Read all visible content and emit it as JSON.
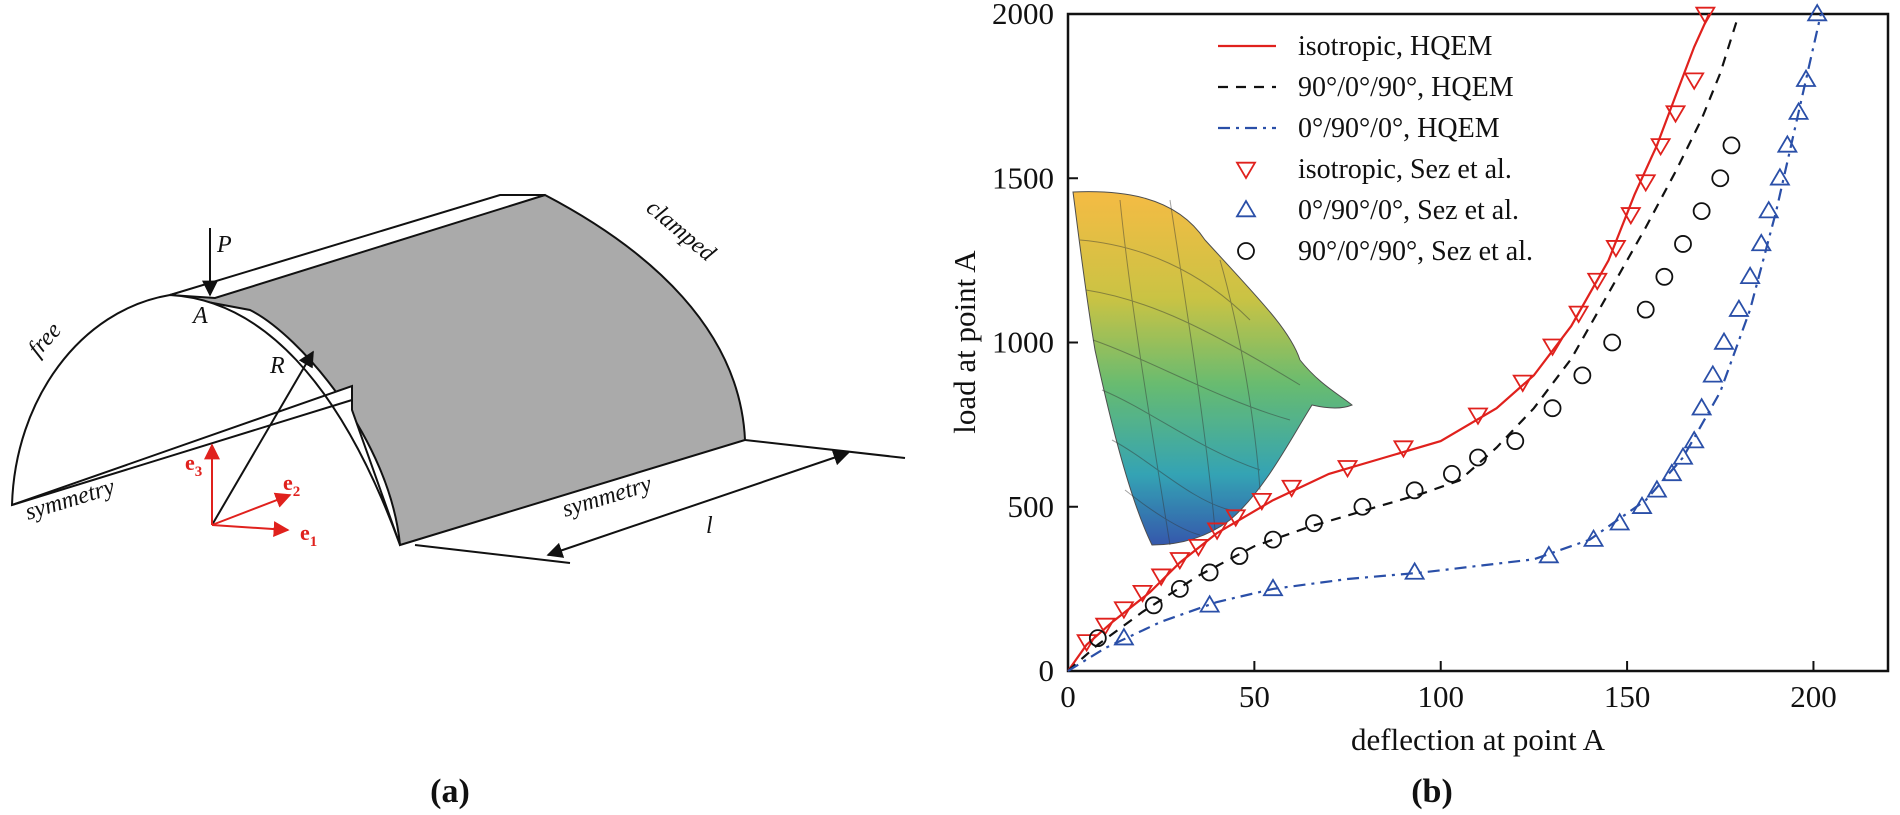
{
  "panel_a": {
    "caption": "(a)",
    "labels": {
      "free": "free",
      "clamped": "clamped",
      "symmetry_left": "symmetry",
      "symmetry_right": "symmetry",
      "load": "P",
      "point": "A",
      "radius": "R",
      "length": "l",
      "e1": "e",
      "e1_sub": "1",
      "e2": "e",
      "e2_sub": "2",
      "e3": "e",
      "e3_sub": "3"
    }
  },
  "panel_b": {
    "caption": "(b)"
  },
  "colors": {
    "isotropic": "#e0211d",
    "cross_90_0_90": "#111111",
    "cross_0_90_0": "#2a4fa8",
    "axes": "#111111",
    "shell_fill": "#aaaaaa",
    "basis": "#e0211d"
  },
  "chart_data": {
    "type": "line",
    "title": "",
    "xlabel": "deflection at point A",
    "ylabel": "load at point A",
    "xlim": [
      0,
      220
    ],
    "ylim": [
      0,
      2000
    ],
    "xticks": [
      0,
      50,
      100,
      150,
      200
    ],
    "yticks": [
      0,
      500,
      1000,
      1500,
      2000
    ],
    "legend_position": "top-center",
    "series": [
      {
        "name": "isotropic, HQEM",
        "style": "solid",
        "color_key": "isotropic",
        "x": [
          0,
          5,
          12,
          22,
          30,
          40,
          55,
          70,
          85,
          100,
          115,
          125,
          135,
          145,
          152,
          158,
          163,
          168,
          172
        ],
        "y": [
          0,
          80,
          150,
          240,
          330,
          420,
          520,
          600,
          650,
          700,
          800,
          900,
          1050,
          1250,
          1450,
          1600,
          1750,
          1900,
          2000
        ]
      },
      {
        "name": "90°/0°/90°, HQEM",
        "style": "dashed",
        "color_key": "cross_90_0_90",
        "x": [
          0,
          8,
          20,
          35,
          50,
          65,
          80,
          95,
          105,
          115,
          125,
          135,
          145,
          155,
          163,
          170,
          175,
          180
        ],
        "y": [
          0,
          80,
          180,
          290,
          380,
          440,
          490,
          540,
          580,
          680,
          800,
          950,
          1150,
          1350,
          1520,
          1680,
          1820,
          2000
        ]
      },
      {
        "name": "0°/90°/0°, HQEM",
        "style": "dashdot",
        "color_key": "cross_0_90_0",
        "x": [
          0,
          10,
          25,
          40,
          55,
          75,
          95,
          110,
          125,
          140,
          155,
          165,
          175,
          183,
          190,
          195,
          199,
          202
        ],
        "y": [
          0,
          70,
          150,
          210,
          250,
          280,
          300,
          320,
          340,
          400,
          520,
          650,
          850,
          1100,
          1400,
          1650,
          1850,
          2000
        ]
      },
      {
        "name": "isotropic, Sez et al.",
        "style": "marker",
        "marker": "triangle-down",
        "color_key": "isotropic",
        "x": [
          5,
          10,
          15,
          20,
          25,
          30,
          35,
          40,
          45,
          52,
          60,
          75,
          90,
          110,
          122,
          130,
          137,
          142,
          147,
          151,
          155,
          159,
          163,
          168,
          171
        ],
        "y": [
          90,
          140,
          190,
          240,
          290,
          340,
          380,
          430,
          470,
          520,
          560,
          620,
          680,
          780,
          880,
          990,
          1090,
          1190,
          1290,
          1390,
          1490,
          1600,
          1700,
          1800,
          2000
        ]
      },
      {
        "name": "0°/90°/0°, Sez et al.",
        "style": "marker",
        "marker": "triangle-up",
        "color_key": "cross_0_90_0",
        "x": [
          15,
          38,
          55,
          93,
          129,
          141,
          148,
          154,
          158,
          162,
          165,
          168,
          170,
          173,
          176,
          180,
          183,
          186,
          188,
          191,
          193,
          196,
          198,
          201
        ],
        "y": [
          100,
          200,
          250,
          300,
          350,
          400,
          450,
          500,
          550,
          600,
          650,
          700,
          800,
          900,
          1000,
          1100,
          1200,
          1300,
          1400,
          1500,
          1600,
          1700,
          1800,
          2000
        ]
      },
      {
        "name": "90°/0°/90°, Sez et al.",
        "style": "marker",
        "marker": "circle",
        "color_key": "cross_90_0_90",
        "x": [
          8,
          23,
          30,
          38,
          46,
          55,
          66,
          79,
          93,
          103,
          110,
          120,
          130,
          138,
          146,
          155,
          160,
          165,
          170,
          175,
          178
        ],
        "y": [
          100,
          200,
          250,
          300,
          350,
          400,
          450,
          500,
          550,
          600,
          650,
          700,
          800,
          900,
          1000,
          1100,
          1200,
          1300,
          1400,
          1500,
          1600
        ]
      }
    ]
  }
}
